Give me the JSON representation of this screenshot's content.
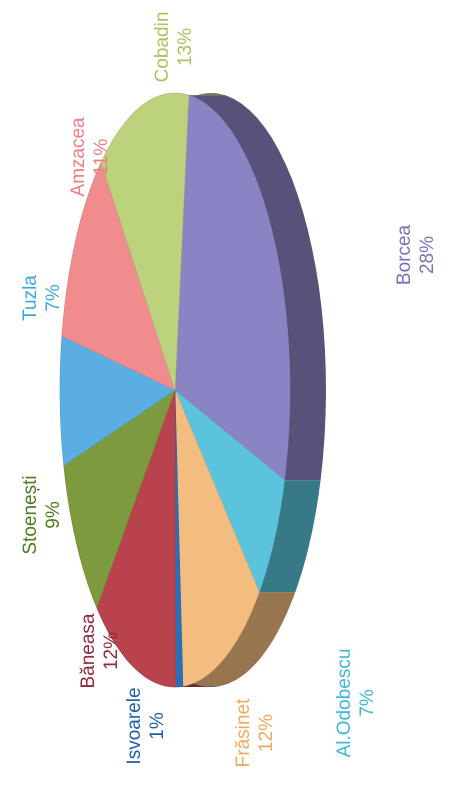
{
  "chart_data": {
    "type": "pie",
    "title": "",
    "slices": [
      {
        "name": "Borcea",
        "label": "Borcea",
        "value": 28,
        "pct_text": "28%",
        "color": "#8b84c4"
      },
      {
        "name": "Al.Odobescu",
        "label": "Al.Odobescu",
        "value": 7,
        "pct_text": "7%",
        "color": "#5bc3dc"
      },
      {
        "name": "Frăsinet",
        "label": "Frăsinet",
        "value": 12,
        "pct_text": "12%",
        "color": "#f3bd80"
      },
      {
        "name": "Isvoarele",
        "label": "Isvoarele",
        "value": 1,
        "pct_text": "1%",
        "color": "#2a70b8"
      },
      {
        "name": "Băneasa",
        "label": "Băneasa",
        "value": 12,
        "pct_text": "12%",
        "color": "#b8434c"
      },
      {
        "name": "Stoenești",
        "label": "Stoenești",
        "value": 9,
        "pct_text": "9%",
        "color": "#7d9a3e"
      },
      {
        "name": "Tuzla",
        "label": "Tuzla",
        "value": 7,
        "pct_text": "7%",
        "color": "#5aaee4"
      },
      {
        "name": "Amzacea",
        "label": "Amzacea",
        "value": 11,
        "pct_text": "11%",
        "color": "#f08c8e"
      },
      {
        "name": "Cobadin",
        "label": "Cobadin",
        "value": 13,
        "pct_text": "13%",
        "color": "#bcd27c"
      }
    ],
    "label_colors": {
      "Borcea": "#7a6fb8",
      "Al.Odobescu": "#3fb6d8",
      "Frăsinet": "#f0a860",
      "Isvoarele": "#1f5fa8",
      "Băneasa": "#8e2b3a",
      "Stoenești": "#4f7a1f",
      "Tuzla": "#3aa8e0",
      "Amzacea": "#f07c84",
      "Cobadin": "#a9c45a"
    },
    "legend": "none",
    "style": "3d-tilted"
  }
}
